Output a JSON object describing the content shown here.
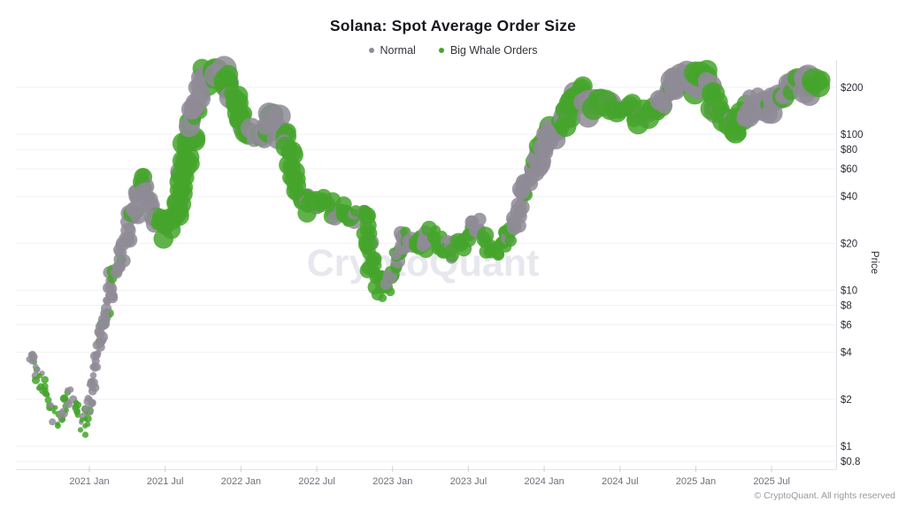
{
  "watermark": "CryptoQuant",
  "attribution": "© CryptoQuant. All rights reserved",
  "chart_data": {
    "type": "scatter",
    "title": "Solana: Spot Average Order Size",
    "series": [
      {
        "name": "Normal",
        "color": "#8f8b97"
      },
      {
        "name": "Big Whale Orders",
        "color": "#45a52c"
      }
    ],
    "x_axis": {
      "ticks": [
        {
          "label": "2021 Jan",
          "m": 0
        },
        {
          "label": "2021 Jul",
          "m": 6
        },
        {
          "label": "2022 Jan",
          "m": 12
        },
        {
          "label": "2022 Jul",
          "m": 18
        },
        {
          "label": "2023 Jan",
          "m": 24
        },
        {
          "label": "2023 Jul",
          "m": 30
        },
        {
          "label": "2024 Jan",
          "m": 36
        },
        {
          "label": "2024 Jul",
          "m": 42
        },
        {
          "label": "2025 Jan",
          "m": 48
        },
        {
          "label": "2025 Jul",
          "m": 54
        }
      ],
      "range_months": [
        -4.8,
        58.4
      ]
    },
    "y_axis": {
      "label": "Price",
      "scale": "log",
      "range": [
        0.8,
        300
      ],
      "ticks": [
        {
          "label": "$200",
          "v": 200
        },
        {
          "label": "$100",
          "v": 100
        },
        {
          "label": "$80",
          "v": 80
        },
        {
          "label": "$60",
          "v": 60
        },
        {
          "label": "$40",
          "v": 40
        },
        {
          "label": "$20",
          "v": 20
        },
        {
          "label": "$10",
          "v": 10
        },
        {
          "label": "$8",
          "v": 8
        },
        {
          "label": "$6",
          "v": 6
        },
        {
          "label": "$4",
          "v": 4
        },
        {
          "label": "$2",
          "v": 2
        },
        {
          "label": "$1",
          "v": 1
        },
        {
          "label": "$0.8",
          "v": 0.8
        }
      ]
    },
    "path_format": "[months_since_2021_Jan, price_usd, dominant_series(n=normal,w=whale,m=mixed), dot_radius_px]",
    "path": [
      [
        -4.7,
        4.2,
        "n",
        4
      ],
      [
        -4.4,
        3.5,
        "n",
        4
      ],
      [
        -4.1,
        2.9,
        "m",
        4
      ],
      [
        -3.7,
        2.4,
        "w",
        3.8
      ],
      [
        -3.3,
        1.95,
        "w",
        3.6
      ],
      [
        -2.9,
        1.65,
        "w",
        3.5
      ],
      [
        -2.5,
        1.4,
        "w",
        3.5
      ],
      [
        -2.1,
        1.5,
        "m",
        3.6
      ],
      [
        -1.8,
        1.95,
        "m",
        3.8
      ],
      [
        -1.5,
        2.2,
        "n",
        4
      ],
      [
        -1.2,
        1.85,
        "w",
        3.6
      ],
      [
        -0.9,
        1.55,
        "w",
        3.5
      ],
      [
        -0.5,
        1.28,
        "w",
        3.5
      ],
      [
        -0.15,
        1.55,
        "n",
        3.8
      ],
      [
        0.15,
        2.2,
        "n",
        4.2
      ],
      [
        0.45,
        3.3,
        "n",
        4.6
      ],
      [
        0.75,
        4.2,
        "n",
        5
      ],
      [
        1.05,
        5.5,
        "n",
        5.2
      ],
      [
        1.35,
        7.2,
        "n",
        5.5
      ],
      [
        1.65,
        9.5,
        "n",
        5.8
      ],
      [
        1.95,
        12.5,
        "n",
        6.2
      ],
      [
        2.35,
        16,
        "n",
        6.6
      ],
      [
        2.75,
        20,
        "n",
        7
      ],
      [
        3.15,
        25,
        "n",
        7.4
      ],
      [
        3.55,
        31,
        "n",
        7.8
      ],
      [
        3.95,
        40,
        "n",
        8.4
      ],
      [
        4.3,
        52,
        "n",
        8.8
      ],
      [
        4.65,
        40,
        "n",
        8.6
      ],
      [
        5,
        31,
        "m",
        8.6
      ],
      [
        5.4,
        26,
        "w",
        9
      ],
      [
        5.8,
        29,
        "w",
        9.2
      ],
      [
        6.2,
        24,
        "w",
        9.4
      ],
      [
        6.6,
        28,
        "w",
        9.8
      ],
      [
        7,
        34,
        "w",
        10
      ],
      [
        7.4,
        48,
        "w",
        10.2
      ],
      [
        7.8,
        78,
        "w",
        10.4
      ],
      [
        8.1,
        110,
        "m",
        10.6
      ],
      [
        8.45,
        150,
        "n",
        11
      ],
      [
        8.8,
        200,
        "n",
        11.4
      ],
      [
        9.2,
        240,
        "n",
        11.8
      ],
      [
        9.6,
        252,
        "n",
        12
      ],
      [
        10,
        228,
        "m",
        11.8
      ],
      [
        10.35,
        246,
        "w",
        12
      ],
      [
        10.7,
        234,
        "w",
        11.8
      ],
      [
        11,
        205,
        "w",
        11.6
      ],
      [
        11.4,
        178,
        "w",
        11.2
      ],
      [
        11.8,
        148,
        "w",
        11
      ],
      [
        12.2,
        115,
        "w",
        10.6
      ],
      [
        12.6,
        95,
        "m",
        10.2
      ],
      [
        13,
        100,
        "n",
        10.4
      ],
      [
        13.5,
        92,
        "n",
        10.2
      ],
      [
        14,
        110,
        "n",
        10.6
      ],
      [
        14.4,
        134,
        "n",
        10.8
      ],
      [
        14.8,
        120,
        "n",
        10.6
      ],
      [
        15.2,
        100,
        "m",
        10.4
      ],
      [
        15.6,
        86,
        "w",
        10
      ],
      [
        16,
        60,
        "w",
        9.4
      ],
      [
        16.4,
        47,
        "w",
        9
      ],
      [
        16.8,
        40,
        "w",
        8.8
      ],
      [
        17.2,
        34,
        "w",
        8.8
      ],
      [
        17.6,
        38,
        "w",
        8.8
      ],
      [
        18,
        33,
        "w",
        8.8
      ],
      [
        18.5,
        40,
        "w",
        9
      ],
      [
        19,
        35,
        "w",
        8.8
      ],
      [
        19.5,
        31,
        "m",
        8.6
      ],
      [
        20,
        33,
        "w",
        8.6
      ],
      [
        20.5,
        30,
        "w",
        8.6
      ],
      [
        21,
        29,
        "w",
        8.6
      ],
      [
        21.5,
        31,
        "w",
        8.6
      ],
      [
        22,
        26,
        "w",
        8.2
      ],
      [
        22.35,
        14,
        "w",
        7.2
      ],
      [
        22.7,
        12.5,
        "w",
        7
      ],
      [
        23.05,
        10.5,
        "w",
        6.8
      ],
      [
        23.4,
        9.6,
        "w",
        6.6
      ],
      [
        23.75,
        11,
        "w",
        6.8
      ],
      [
        24.1,
        13.5,
        "m",
        7
      ],
      [
        24.5,
        18,
        "n",
        7.6
      ],
      [
        24.9,
        23,
        "m",
        8
      ],
      [
        25.3,
        21,
        "n",
        7.8
      ],
      [
        25.7,
        19,
        "m",
        7.6
      ],
      [
        26.1,
        21.5,
        "w",
        7.8
      ],
      [
        26.5,
        19,
        "n",
        7.6
      ],
      [
        26.95,
        23,
        "m",
        8
      ],
      [
        27.4,
        21,
        "w",
        7.8
      ],
      [
        27.85,
        20,
        "m",
        7.8
      ],
      [
        28.3,
        18.5,
        "w",
        7.6
      ],
      [
        28.75,
        17,
        "w",
        7.6
      ],
      [
        29.2,
        18.5,
        "w",
        7.6
      ],
      [
        29.65,
        21,
        "w",
        7.8
      ],
      [
        30.1,
        25,
        "m",
        8
      ],
      [
        30.7,
        26,
        "n",
        8
      ],
      [
        31.1,
        22,
        "m",
        7.8
      ],
      [
        31.5,
        20,
        "w",
        7.8
      ],
      [
        31.9,
        19,
        "w",
        7.6
      ],
      [
        32.3,
        18,
        "w",
        7.6
      ],
      [
        32.7,
        20,
        "w",
        7.8
      ],
      [
        33.1,
        22,
        "m",
        8
      ],
      [
        33.5,
        24,
        "n",
        8
      ],
      [
        33.9,
        30,
        "n",
        8.4
      ],
      [
        34.3,
        39,
        "n",
        8.6
      ],
      [
        34.7,
        52,
        "n",
        9
      ],
      [
        35,
        58,
        "n",
        9.2
      ],
      [
        35.4,
        63,
        "n",
        9.4
      ],
      [
        35.7,
        74,
        "n",
        9.6
      ],
      [
        36.05,
        98,
        "n",
        10
      ],
      [
        36.35,
        110,
        "n",
        10.4
      ],
      [
        36.65,
        96,
        "n",
        10.2
      ],
      [
        37,
        101,
        "m",
        10.4
      ],
      [
        37.4,
        113,
        "w",
        10.6
      ],
      [
        37.8,
        135,
        "w",
        10.8
      ],
      [
        38.2,
        165,
        "w",
        11
      ],
      [
        38.6,
        194,
        "w",
        11.4
      ],
      [
        39,
        184,
        "m",
        11.2
      ],
      [
        39.3,
        168,
        "n",
        11
      ],
      [
        39.65,
        146,
        "n",
        10.8
      ],
      [
        40,
        152,
        "w",
        11
      ],
      [
        40.4,
        167,
        "w",
        11
      ],
      [
        40.8,
        172,
        "w",
        11
      ],
      [
        41.2,
        150,
        "w",
        11
      ],
      [
        41.6,
        140,
        "w",
        10.8
      ],
      [
        42,
        146,
        "w",
        11
      ],
      [
        42.4,
        160,
        "w",
        11
      ],
      [
        42.8,
        150,
        "w",
        11
      ],
      [
        43.2,
        136,
        "w",
        10.8
      ],
      [
        43.6,
        130,
        "w",
        10.6
      ],
      [
        44,
        133,
        "w",
        10.8
      ],
      [
        44.4,
        145,
        "w",
        10.8
      ],
      [
        44.8,
        152,
        "w",
        11
      ],
      [
        45.2,
        156,
        "n",
        11
      ],
      [
        45.6,
        168,
        "n",
        11
      ],
      [
        46,
        182,
        "n",
        11.2
      ],
      [
        46.4,
        214,
        "n",
        11.6
      ],
      [
        46.8,
        234,
        "n",
        11.8
      ],
      [
        47.2,
        220,
        "n",
        11.6
      ],
      [
        47.6,
        200,
        "m",
        11.4
      ],
      [
        48,
        212,
        "n",
        11.6
      ],
      [
        48.3,
        252,
        "w",
        12
      ],
      [
        48.65,
        238,
        "w",
        11.8
      ],
      [
        49,
        200,
        "w",
        11.6
      ],
      [
        49.4,
        165,
        "w",
        11
      ],
      [
        49.8,
        140,
        "w",
        10.8
      ],
      [
        50.2,
        125,
        "w",
        10.6
      ],
      [
        50.6,
        114,
        "w",
        10.4
      ],
      [
        51,
        107,
        "w",
        10.4
      ],
      [
        51.4,
        120,
        "w",
        10.6
      ],
      [
        51.8,
        134,
        "m",
        10.8
      ],
      [
        52.2,
        150,
        "n",
        11
      ],
      [
        52.6,
        164,
        "n",
        11
      ],
      [
        53,
        154,
        "n",
        11
      ],
      [
        53.4,
        139,
        "m",
        10.8
      ],
      [
        53.8,
        150,
        "n",
        11
      ],
      [
        54.2,
        164,
        "n",
        11
      ],
      [
        54.6,
        178,
        "n",
        11.2
      ],
      [
        55,
        170,
        "n",
        11
      ],
      [
        55.4,
        186,
        "n",
        11.4
      ],
      [
        55.8,
        208,
        "n",
        11.6
      ],
      [
        56.2,
        228,
        "n",
        11.8
      ],
      [
        56.6,
        212,
        "n",
        11.6
      ],
      [
        57,
        192,
        "m",
        11.6
      ],
      [
        57.4,
        200,
        "w",
        11.8
      ],
      [
        57.8,
        198,
        "w",
        11.8
      ],
      [
        58.15,
        192,
        "w",
        11.6
      ]
    ]
  }
}
